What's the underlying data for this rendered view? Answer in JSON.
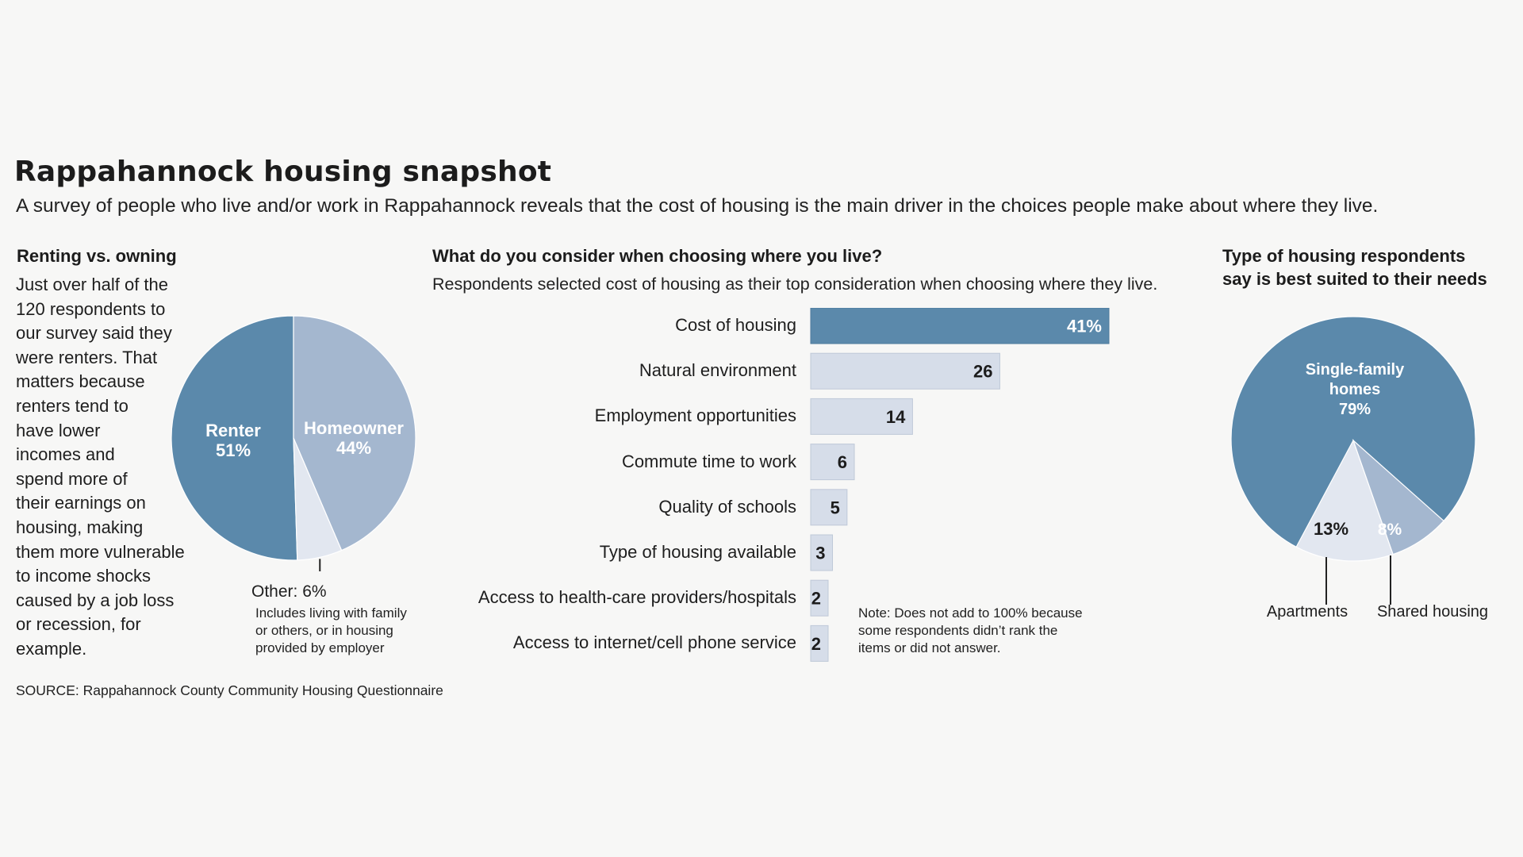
{
  "header": {
    "title": "Rappahannock housing snapshot",
    "subtitle": "A survey of people who live and/or work in Rappahannock reveals that the cost of housing is the main driver in the choices people make about where they live."
  },
  "left_panel": {
    "heading": "Renting vs. owning",
    "body_lines": [
      "Just over half of the",
      "120 respondents to",
      "our survey said they",
      "were renters. That",
      "matters because",
      "renters tend to",
      "have lower",
      "incomes and",
      "spend more of",
      "their earnings on",
      "housing, making",
      "them more vulnerable",
      "to income shocks",
      "caused by a job loss",
      "or recession, for",
      "example."
    ],
    "other_label": "Other: 6%",
    "other_note_lines": [
      "Includes living with family",
      "or others, or in housing",
      "provided by employer"
    ]
  },
  "middle_panel": {
    "heading": "What do you consider when choosing where you live?",
    "description": "Respondents selected cost of housing as their top consideration when choosing where they live.",
    "note_lines": [
      "Note: Does not add to 100% because",
      "some respondents didn’t rank the",
      "items or did not answer."
    ]
  },
  "right_panel": {
    "heading_lines": [
      "Type of housing respondents",
      "say is best suited to their needs"
    ]
  },
  "source": "SOURCE: Rappahannock County Community Housing Questionnaire",
  "colors": {
    "dark_blue": "#5b89ab",
    "mid_blue": "#a4b7cf",
    "light_blue": "#d6dde9",
    "pale": "#e2e7f0"
  },
  "chart_data": [
    {
      "type": "pie",
      "labels": [
        "Renter",
        "Homeowner",
        "Other"
      ],
      "values": [
        51,
        44,
        6
      ],
      "value_labels": [
        "51%",
        "44%",
        ""
      ]
    },
    {
      "type": "bar",
      "orientation": "horizontal",
      "categories": [
        "Cost of housing",
        "Natural environment",
        "Employment opportunities",
        "Commute time to work",
        "Quality of schools",
        "Type of housing available",
        "Access to health-care providers/hospitals",
        "Access to internet/cell phone service"
      ],
      "values": [
        41,
        26,
        14,
        6,
        5,
        3,
        2,
        2
      ],
      "value_labels": [
        "41%",
        "26",
        "14",
        "6",
        "5",
        "3",
        "2",
        "2"
      ],
      "xlim": [
        0,
        41
      ]
    },
    {
      "type": "pie",
      "labels": [
        "Single-family homes",
        "Apartments",
        "Shared housing"
      ],
      "values": [
        79,
        13,
        8
      ],
      "value_labels": [
        "79%",
        "13%",
        "8%"
      ]
    }
  ]
}
